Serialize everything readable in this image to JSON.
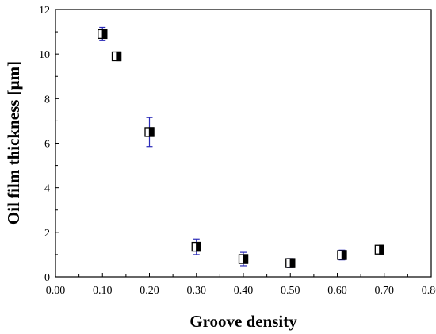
{
  "chart_data": {
    "type": "scatter",
    "xlabel": "Groove density",
    "ylabel": "Oil film thickness [μm]",
    "xlim": [
      0.0,
      0.8
    ],
    "ylim": [
      0,
      12
    ],
    "x_ticks": [
      "0.00",
      "0.10",
      "0.20",
      "0.30",
      "0.40",
      "0.50",
      "0.60",
      "0.70",
      "0.80"
    ],
    "y_ticks": [
      "0",
      "2",
      "4",
      "6",
      "8",
      "10",
      "12"
    ],
    "grid": false,
    "legend": "none",
    "marker": "half-filled square",
    "colors": {
      "marker": "#000000",
      "error_bar": "#2b2bb8",
      "axis": "#000000"
    },
    "series": [
      {
        "x": [
          0.1,
          0.13,
          0.2,
          0.3,
          0.4,
          0.5,
          0.61,
          0.69
        ],
        "y": [
          10.9,
          9.9,
          6.5,
          1.35,
          0.8,
          0.62,
          0.98,
          1.22
        ],
        "yerr": [
          0.3,
          0.15,
          0.65,
          0.35,
          0.3,
          0.2,
          0.22,
          0.12
        ]
      }
    ]
  }
}
